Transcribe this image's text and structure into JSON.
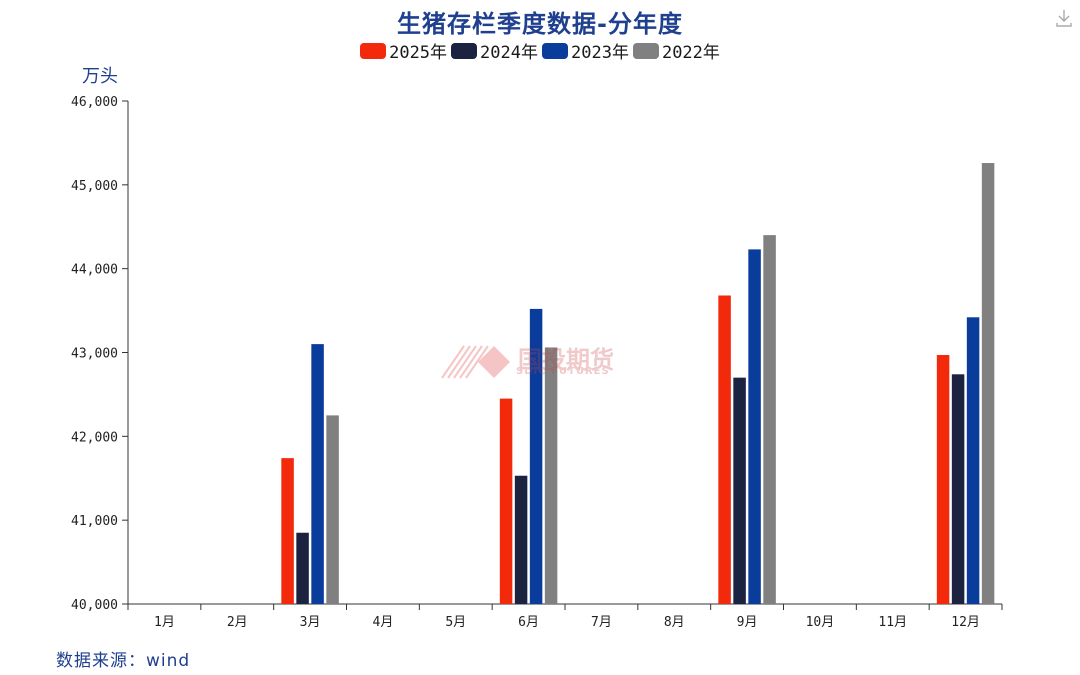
{
  "chart_data": {
    "type": "bar",
    "title": "生猪存栏季度数据-分年度",
    "ylabel": "万头",
    "source": "数据来源：wind",
    "categories": [
      "1月",
      "2月",
      "3月",
      "4月",
      "5月",
      "6月",
      "7月",
      "8月",
      "9月",
      "10月",
      "11月",
      "12月"
    ],
    "yticks": [
      "40,000",
      "41,000",
      "42,000",
      "43,000",
      "44,000",
      "45,000",
      "46,000"
    ],
    "ylim": [
      40000,
      46000
    ],
    "legend_position": "top-center",
    "grid": false,
    "series": [
      {
        "name": "2025年",
        "color": "#f2290a",
        "values": [
          null,
          null,
          41740,
          null,
          null,
          42450,
          null,
          null,
          43680,
          null,
          null,
          42970
        ]
      },
      {
        "name": "2024年",
        "color": "#1c2340",
        "values": [
          null,
          null,
          40850,
          null,
          null,
          41530,
          null,
          null,
          42700,
          null,
          null,
          42740
        ]
      },
      {
        "name": "2023年",
        "color": "#0a3c9c",
        "values": [
          null,
          null,
          43100,
          null,
          null,
          43520,
          null,
          null,
          44230,
          null,
          null,
          43420
        ]
      },
      {
        "name": "2022年",
        "color": "#808080",
        "values": [
          null,
          null,
          42250,
          null,
          null,
          43060,
          null,
          null,
          44400,
          null,
          null,
          45260
        ]
      }
    ]
  },
  "watermark": {
    "main": "国投期货",
    "sub": "SDIC FUTURES"
  },
  "icons": {
    "download": "download-icon"
  }
}
